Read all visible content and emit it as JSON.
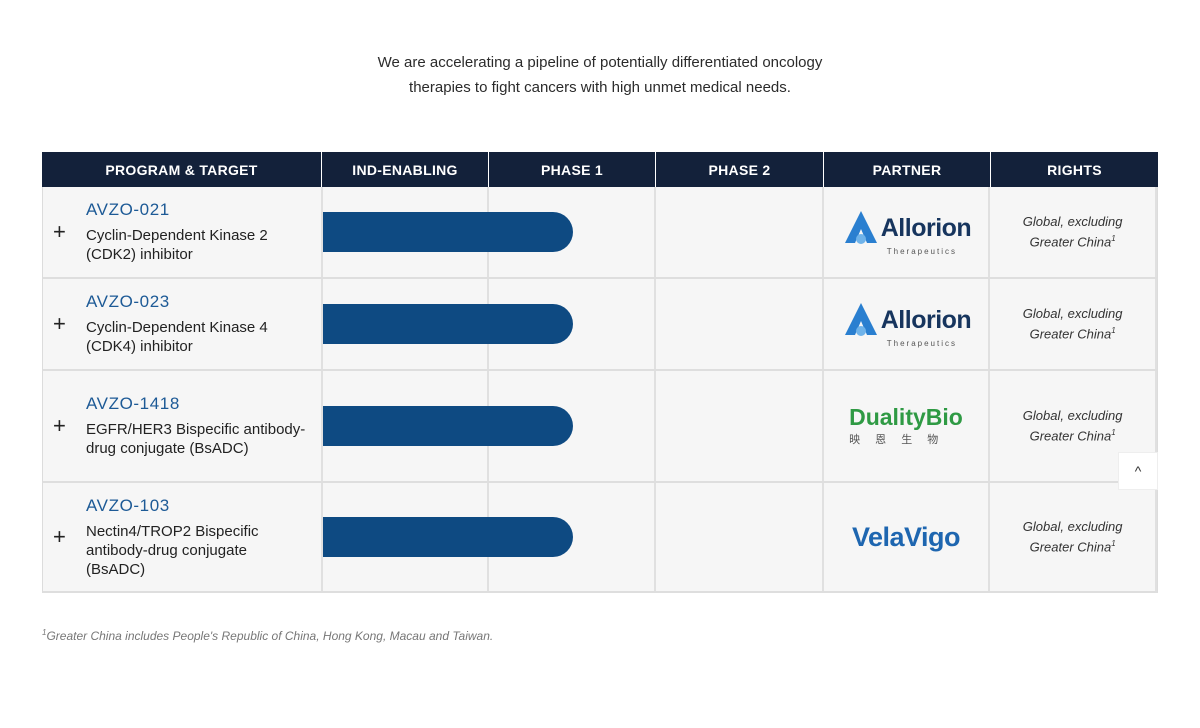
{
  "intro": {
    "line1": "We are accelerating a pipeline of potentially differentiated oncology",
    "line2": "therapies to fight cancers with high unmet medical needs."
  },
  "headers": [
    "PROGRAM & TARGET",
    "IND-ENABLING",
    "PHASE 1",
    "PHASE 2",
    "PARTNER",
    "RIGHTS"
  ],
  "programs": [
    {
      "code": "AVZO-021",
      "description": "Cyclin-Dependent Kinase 2 (CDK2) inhibitor",
      "progress_phase": "Phase 1",
      "partner": {
        "name": "Allorion",
        "sub": "Therapeutics"
      },
      "rights": {
        "line1": "Global, excluding",
        "line2": "Greater China",
        "sup": "1"
      }
    },
    {
      "code": "AVZO-023",
      "description": "Cyclin-Dependent Kinase 4 (CDK4) inhibitor",
      "progress_phase": "Phase 1",
      "partner": {
        "name": "Allorion",
        "sub": "Therapeutics"
      },
      "rights": {
        "line1": "Global, excluding",
        "line2": "Greater China",
        "sup": "1"
      }
    },
    {
      "code": "AVZO-1418",
      "description": "EGFR/HER3 Bispecific antibody-drug conjugate (BsADC)",
      "progress_phase": "Phase 1",
      "partner": {
        "name": "DualityBio",
        "sub": "映 恩 生 物"
      },
      "rights": {
        "line1": "Global, excluding",
        "line2": "Greater China",
        "sup": "1"
      }
    },
    {
      "code": "AVZO-103",
      "description": "Nectin4/TROP2 Bispecific antibody-drug conjugate (BsADC)",
      "progress_phase": "Phase 1",
      "partner": {
        "name": "VelaVigo",
        "sub": ""
      },
      "rights": {
        "line1": "Global, excluding",
        "line2": "Greater China",
        "sup": "1"
      }
    }
  ],
  "footnote": {
    "sup": "1",
    "text": "Greater China includes People's Republic of China, Hong Kong, Macau and Taiwan."
  },
  "scroll_top": {
    "glyph": "^"
  },
  "colors": {
    "header_bg": "#13213a",
    "bar": "#0e4a82",
    "code": "#1d5a96",
    "allorion": "#17355e",
    "duality": "#2f9a44",
    "velavigo": "#1e66b0"
  }
}
